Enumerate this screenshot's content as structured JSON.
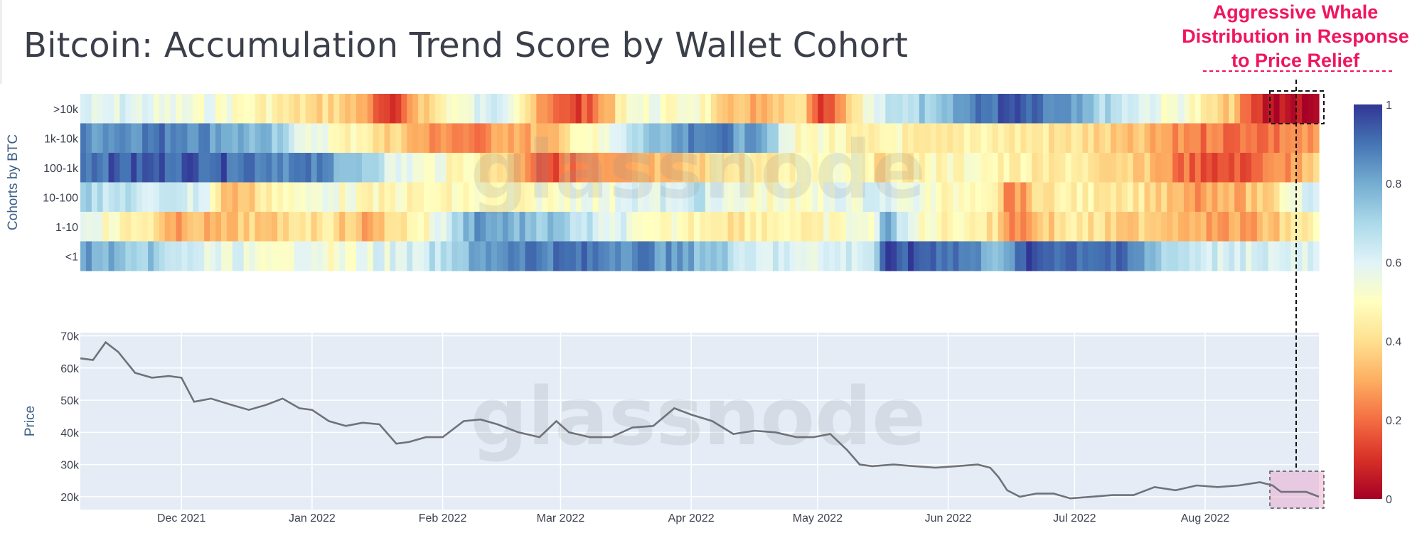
{
  "title": "Bitcoin: Accumulation Trend Score by Wallet Cohort",
  "annotation": {
    "lines": [
      "Aggressive Whale",
      "Distribution in Response",
      "to Price Relief"
    ],
    "color": "#f0155f"
  },
  "watermark": "glassnode",
  "chart_data": [
    {
      "type": "heatmap",
      "title": "",
      "xlabel": "",
      "ylabel": "Cohorts by BTC",
      "rows": [
        ">10k",
        "1k-10k",
        "100-1k",
        "10-100",
        "1-10",
        "<1"
      ],
      "x_range": [
        "2021-11-07",
        "2022-08-28"
      ],
      "colorscale": "RdYlBu",
      "colorbar": {
        "range": [
          0,
          1
        ],
        "ticks": [
          "1",
          "0.8",
          "0.6",
          "0.4",
          "0.2",
          "0"
        ]
      },
      "segments": {
        ">10k": [
          [
            0.0,
            0.62
          ],
          [
            0.1,
            0.55
          ],
          [
            0.22,
            0.35
          ],
          [
            0.25,
            0.12
          ],
          [
            0.29,
            0.45
          ],
          [
            0.33,
            0.65
          ],
          [
            0.36,
            0.4
          ],
          [
            0.4,
            0.1
          ],
          [
            0.45,
            0.55
          ],
          [
            0.5,
            0.5
          ],
          [
            0.54,
            0.3
          ],
          [
            0.58,
            0.45
          ],
          [
            0.6,
            0.12
          ],
          [
            0.63,
            0.5
          ],
          [
            0.65,
            0.62
          ],
          [
            0.7,
            0.8
          ],
          [
            0.75,
            0.95
          ],
          [
            0.8,
            0.8
          ],
          [
            0.85,
            0.6
          ],
          [
            0.9,
            0.5
          ],
          [
            0.93,
            0.35
          ],
          [
            0.96,
            0.03
          ],
          [
            1.0,
            0.03
          ]
        ],
        "1k-10k": [
          [
            0.0,
            0.85
          ],
          [
            0.08,
            0.9
          ],
          [
            0.15,
            0.75
          ],
          [
            0.19,
            0.55
          ],
          [
            0.25,
            0.38
          ],
          [
            0.3,
            0.22
          ],
          [
            0.35,
            0.28
          ],
          [
            0.38,
            0.35
          ],
          [
            0.45,
            0.7
          ],
          [
            0.5,
            0.92
          ],
          [
            0.55,
            0.78
          ],
          [
            0.58,
            0.5
          ],
          [
            0.65,
            0.48
          ],
          [
            0.72,
            0.45
          ],
          [
            0.8,
            0.42
          ],
          [
            0.86,
            0.35
          ],
          [
            0.9,
            0.22
          ],
          [
            0.95,
            0.18
          ],
          [
            1.0,
            0.3
          ]
        ],
        "100-1k": [
          [
            0.0,
            0.92
          ],
          [
            0.1,
            0.95
          ],
          [
            0.2,
            0.85
          ],
          [
            0.25,
            0.6
          ],
          [
            0.3,
            0.5
          ],
          [
            0.35,
            0.35
          ],
          [
            0.37,
            0.12
          ],
          [
            0.42,
            0.3
          ],
          [
            0.47,
            0.35
          ],
          [
            0.52,
            0.42
          ],
          [
            0.55,
            0.45
          ],
          [
            0.62,
            0.5
          ],
          [
            0.65,
            0.4
          ],
          [
            0.7,
            0.5
          ],
          [
            0.78,
            0.45
          ],
          [
            0.85,
            0.4
          ],
          [
            0.89,
            0.2
          ],
          [
            0.93,
            0.14
          ],
          [
            0.97,
            0.25
          ],
          [
            1.0,
            0.35
          ]
        ],
        "10-100": [
          [
            0.0,
            0.7
          ],
          [
            0.1,
            0.6
          ],
          [
            0.12,
            0.3
          ],
          [
            0.18,
            0.55
          ],
          [
            0.25,
            0.48
          ],
          [
            0.32,
            0.5
          ],
          [
            0.4,
            0.52
          ],
          [
            0.46,
            0.6
          ],
          [
            0.5,
            0.65
          ],
          [
            0.55,
            0.5
          ],
          [
            0.6,
            0.55
          ],
          [
            0.65,
            0.6
          ],
          [
            0.7,
            0.5
          ],
          [
            0.74,
            0.42
          ],
          [
            0.75,
            0.2
          ],
          [
            0.78,
            0.45
          ],
          [
            0.85,
            0.45
          ],
          [
            0.9,
            0.25
          ],
          [
            0.95,
            0.35
          ],
          [
            1.0,
            0.65
          ]
        ],
        "1-10": [
          [
            0.0,
            0.55
          ],
          [
            0.05,
            0.45
          ],
          [
            0.08,
            0.3
          ],
          [
            0.12,
            0.35
          ],
          [
            0.2,
            0.42
          ],
          [
            0.23,
            0.3
          ],
          [
            0.28,
            0.5
          ],
          [
            0.32,
            0.82
          ],
          [
            0.38,
            0.75
          ],
          [
            0.43,
            0.6
          ],
          [
            0.48,
            0.5
          ],
          [
            0.52,
            0.4
          ],
          [
            0.56,
            0.45
          ],
          [
            0.6,
            0.5
          ],
          [
            0.64,
            0.55
          ],
          [
            0.65,
            0.8
          ],
          [
            0.68,
            0.5
          ],
          [
            0.74,
            0.42
          ],
          [
            0.75,
            0.2
          ],
          [
            0.8,
            0.45
          ],
          [
            0.86,
            0.35
          ],
          [
            0.9,
            0.28
          ],
          [
            0.95,
            0.3
          ],
          [
            1.0,
            0.5
          ]
        ],
        "<1": [
          [
            0.0,
            0.82
          ],
          [
            0.05,
            0.75
          ],
          [
            0.1,
            0.6
          ],
          [
            0.2,
            0.52
          ],
          [
            0.28,
            0.65
          ],
          [
            0.35,
            0.9
          ],
          [
            0.45,
            0.88
          ],
          [
            0.5,
            0.78
          ],
          [
            0.55,
            0.62
          ],
          [
            0.6,
            0.6
          ],
          [
            0.64,
            0.65
          ],
          [
            0.65,
            0.95
          ],
          [
            0.7,
            0.93
          ],
          [
            0.75,
            0.75
          ],
          [
            0.76,
            0.95
          ],
          [
            0.83,
            0.92
          ],
          [
            0.85,
            0.85
          ],
          [
            0.88,
            0.7
          ],
          [
            0.93,
            0.6
          ],
          [
            1.0,
            0.62
          ]
        ]
      }
    },
    {
      "type": "line",
      "title": "",
      "xlabel": "",
      "ylabel": "Price",
      "ylim": [
        16000,
        71000
      ],
      "x_range": [
        "2021-11-07",
        "2022-08-28"
      ],
      "x_ticks": [
        "Dec 2021",
        "Jan 2022",
        "Feb 2022",
        "Mar 2022",
        "Apr 2022",
        "May 2022",
        "Jun 2022",
        "Jul 2022",
        "Aug 2022"
      ],
      "y_ticks": [
        "20k",
        "30k",
        "40k",
        "50k",
        "60k",
        "70k"
      ],
      "series": [
        {
          "x": [
            "2021-11-07",
            "2021-11-10",
            "2021-11-13",
            "2021-11-16",
            "2021-11-20",
            "2021-11-24",
            "2021-11-28",
            "2021-12-01",
            "2021-12-04",
            "2021-12-08",
            "2021-12-13",
            "2021-12-17",
            "2021-12-21",
            "2021-12-25",
            "2021-12-29",
            "2022-01-01",
            "2022-01-05",
            "2022-01-09",
            "2022-01-13",
            "2022-01-17",
            "2022-01-21",
            "2022-01-24",
            "2022-01-28",
            "2022-02-01",
            "2022-02-06",
            "2022-02-10",
            "2022-02-14",
            "2022-02-19",
            "2022-02-24",
            "2022-02-28",
            "2022-03-03",
            "2022-03-08",
            "2022-03-13",
            "2022-03-18",
            "2022-03-23",
            "2022-03-28",
            "2022-04-01",
            "2022-04-06",
            "2022-04-11",
            "2022-04-16",
            "2022-04-21",
            "2022-04-26",
            "2022-04-30",
            "2022-05-04",
            "2022-05-08",
            "2022-05-11",
            "2022-05-14",
            "2022-05-19",
            "2022-05-24",
            "2022-05-29",
            "2022-06-03",
            "2022-06-08",
            "2022-06-11",
            "2022-06-13",
            "2022-06-15",
            "2022-06-18",
            "2022-06-22",
            "2022-06-26",
            "2022-06-30",
            "2022-07-05",
            "2022-07-10",
            "2022-07-15",
            "2022-07-20",
            "2022-07-25",
            "2022-07-30",
            "2022-08-04",
            "2022-08-09",
            "2022-08-14",
            "2022-08-17",
            "2022-08-19",
            "2022-08-22",
            "2022-08-25",
            "2022-08-28"
          ],
          "y": [
            63000,
            62500,
            68000,
            65000,
            58500,
            57000,
            57500,
            57000,
            49500,
            50500,
            48500,
            47000,
            48500,
            50500,
            47500,
            47000,
            43500,
            42000,
            43000,
            42500,
            36500,
            37000,
            38500,
            38500,
            43500,
            44000,
            42500,
            40000,
            38500,
            43500,
            40000,
            38500,
            38500,
            41500,
            42000,
            47500,
            45500,
            43500,
            39500,
            40500,
            40000,
            38500,
            38500,
            39500,
            34500,
            30000,
            29500,
            30000,
            29500,
            29000,
            29500,
            30000,
            29000,
            26000,
            22000,
            20000,
            21000,
            21000,
            19500,
            20000,
            20500,
            20500,
            23000,
            22000,
            23500,
            23000,
            23500,
            24500,
            23500,
            21500,
            21500,
            21500,
            20000
          ]
        }
      ]
    }
  ]
}
